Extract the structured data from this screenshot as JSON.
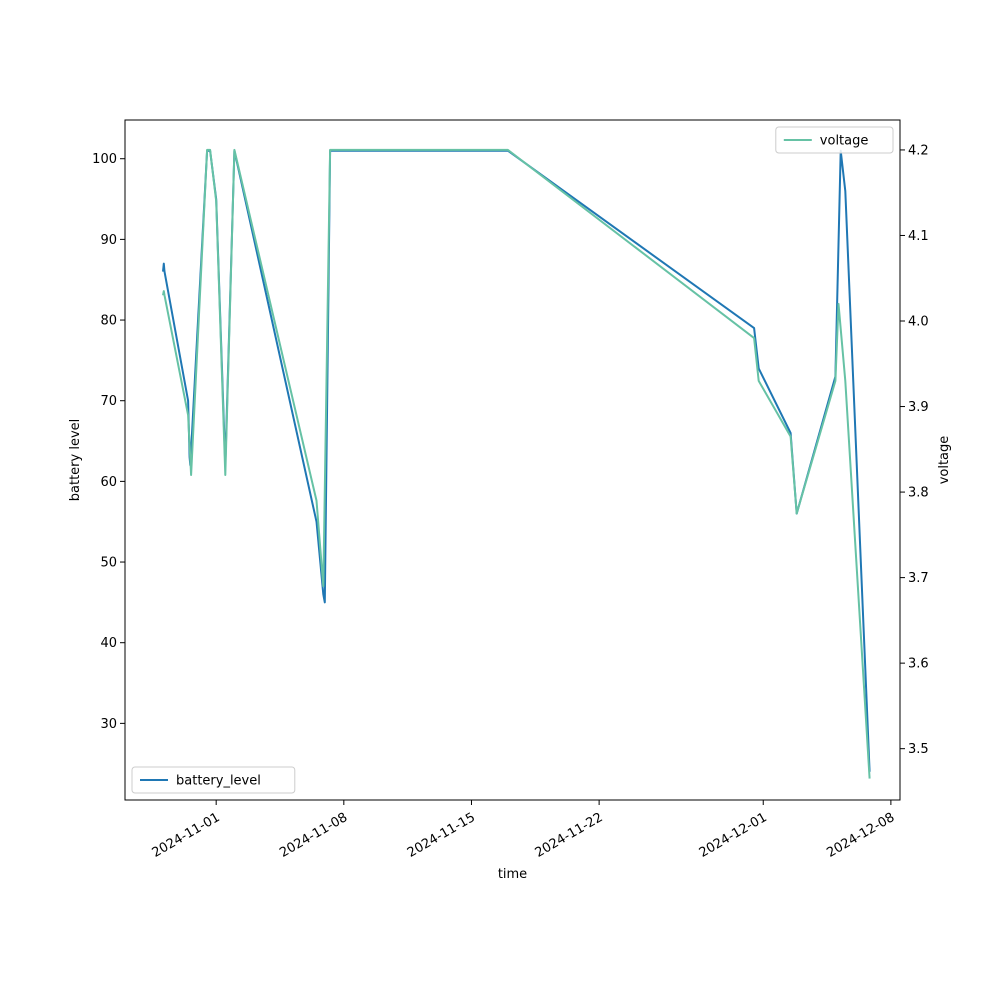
{
  "chart_data": {
    "type": "line",
    "xlabel": "time",
    "x_ticks": [
      "2024-11-01",
      "2024-11-08",
      "2024-11-15",
      "2024-11-22",
      "2024-12-01",
      "2024-12-08"
    ],
    "grid": false,
    "left_axis": {
      "label": "battery level",
      "ylim": [
        20.5,
        104.8
      ],
      "ticks": [
        "30",
        "40",
        "50",
        "60",
        "70",
        "80",
        "90",
        "100"
      ],
      "legend_placement": "lower-left"
    },
    "right_axis": {
      "label": "voltage",
      "ylim": [
        3.44,
        4.235
      ],
      "ticks": [
        "3.5",
        "3.6",
        "3.7",
        "3.8",
        "3.9",
        "4.0",
        "4.1",
        "4.2"
      ],
      "legend_placement": "upper-right"
    },
    "series": [
      {
        "name": "battery_level",
        "axis": "left",
        "color": "#1f77b4",
        "points": [
          [
            "2024-10-29 02:00",
            86
          ],
          [
            "2024-10-29 03:00",
            87
          ],
          [
            "2024-10-29 04:00",
            86
          ],
          [
            "2024-10-30 11:00",
            70
          ],
          [
            "2024-10-30 13:00",
            63
          ],
          [
            "2024-10-30 14:00",
            62
          ],
          [
            "2024-10-31 12:00",
            101
          ],
          [
            "2024-10-31 16:00",
            101
          ],
          [
            "2024-11-01 00:00",
            95
          ],
          [
            "2024-11-01 12:00",
            62
          ],
          [
            "2024-11-02 00:00",
            101
          ],
          [
            "2024-11-06 12:00",
            55
          ],
          [
            "2024-11-06 21:00",
            46
          ],
          [
            "2024-11-06 23:00",
            45
          ],
          [
            "2024-11-07 06:00",
            101
          ],
          [
            "2024-11-17 00:00",
            101
          ],
          [
            "2024-11-30 12:00",
            79
          ],
          [
            "2024-11-30 18:00",
            74
          ],
          [
            "2024-12-02 12:00",
            66
          ],
          [
            "2024-12-02 20:00",
            56
          ],
          [
            "2024-12-04 23:00",
            73
          ],
          [
            "2024-12-05 06:00",
            101
          ],
          [
            "2024-12-05 12:00",
            96
          ],
          [
            "2024-12-06 20:00",
            24
          ]
        ]
      },
      {
        "name": "voltage",
        "axis": "right",
        "color": "#66c2a5",
        "points": [
          [
            "2024-10-29 02:00",
            4.03
          ],
          [
            "2024-10-29 03:00",
            4.035
          ],
          [
            "2024-10-29 04:00",
            4.03
          ],
          [
            "2024-10-30 11:00",
            3.89
          ],
          [
            "2024-10-30 15:00",
            3.82
          ],
          [
            "2024-10-31 12:00",
            4.2
          ],
          [
            "2024-10-31 16:00",
            4.2
          ],
          [
            "2024-11-01 00:00",
            4.14
          ],
          [
            "2024-11-01 12:00",
            3.82
          ],
          [
            "2024-11-02 00:00",
            4.2
          ],
          [
            "2024-11-06 12:00",
            3.79
          ],
          [
            "2024-11-06 21:00",
            3.69
          ],
          [
            "2024-11-07 06:00",
            4.2
          ],
          [
            "2024-11-07 15:00",
            4.2
          ],
          [
            "2024-11-17 00:00",
            4.2
          ],
          [
            "2024-11-30 12:00",
            3.98
          ],
          [
            "2024-11-30 18:00",
            3.93
          ],
          [
            "2024-12-02 12:00",
            3.865
          ],
          [
            "2024-12-02 20:00",
            3.775
          ],
          [
            "2024-12-04 23:00",
            3.93
          ],
          [
            "2024-12-05 03:00",
            4.02
          ],
          [
            "2024-12-05 12:00",
            3.93
          ],
          [
            "2024-12-06 20:00",
            3.465
          ]
        ]
      }
    ]
  }
}
